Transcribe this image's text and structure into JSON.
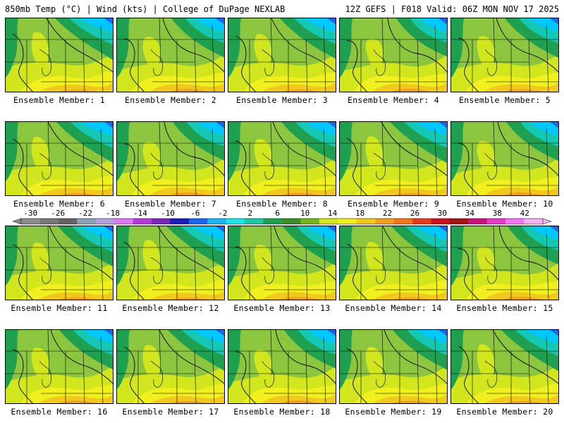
{
  "header": {
    "left": "850mb Temp (°C) | Wind (kts) | College of DuPage NEXLAB",
    "right": "12Z GEFS | F018 Valid: 06Z MON NOV 17 2025"
  },
  "caption_prefix": "Ensemble Member:",
  "members": [
    1,
    2,
    3,
    4,
    5,
    6,
    7,
    8,
    9,
    10,
    11,
    12,
    13,
    14,
    15,
    16,
    17,
    18,
    19,
    20
  ],
  "colorbar": {
    "labels": [
      "-30",
      "-26",
      "-22",
      "-18",
      "-14",
      "-10",
      "-6",
      "-2",
      "2",
      "6",
      "10",
      "14",
      "18",
      "22",
      "26",
      "30",
      "34",
      "38",
      "42"
    ],
    "colors": [
      "#8c8c8c",
      "#787878",
      "#646464",
      "#8ca0b4",
      "#b4a0dc",
      "#dc78f0",
      "#b43cdc",
      "#7828b4",
      "#1e1eb4",
      "#1e64f0",
      "#1eb4f0",
      "#1ee6e6",
      "#1ec8a0",
      "#1ea050",
      "#3c8c28",
      "#78b41e",
      "#d2e61e",
      "#f0f01e",
      "#f0c81e",
      "#f0a01e",
      "#f0781e",
      "#e63c1e",
      "#c8141e",
      "#a01414",
      "#c81478",
      "#e63cc8",
      "#f078f0",
      "#f0b4f0"
    ]
  },
  "map_colors": {
    "cold": "#00c8ff",
    "cool": "#14c8b4",
    "mid": "#1ea050",
    "green": "#8cc63e",
    "lime": "#d2e61e",
    "yellow": "#f0f01e",
    "warm": "#f0c81e",
    "hot": "#f0a01e"
  }
}
